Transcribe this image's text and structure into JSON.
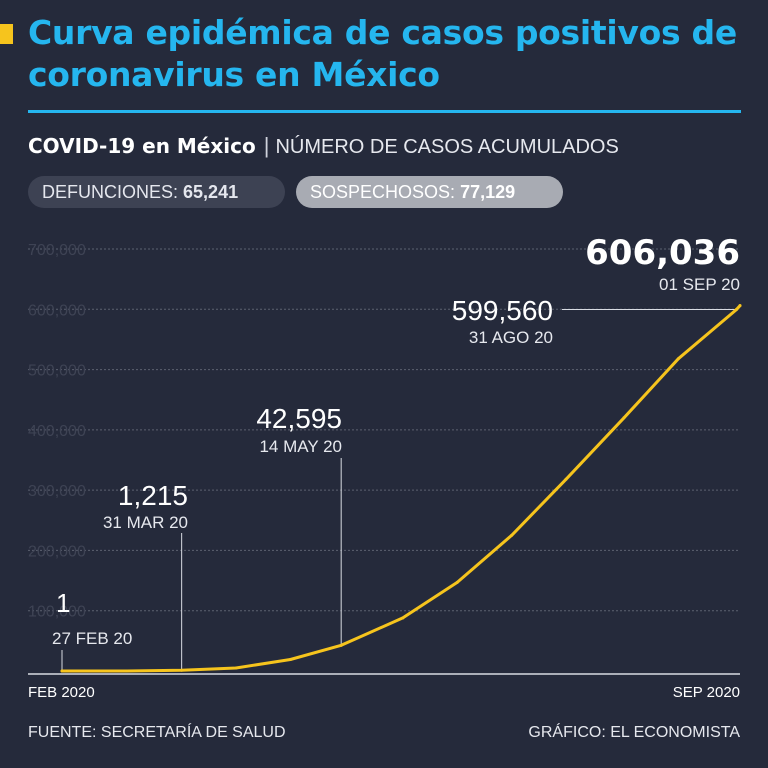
{
  "title": "Curva epidémica de casos positivos de coronavirus en México",
  "subtitle": {
    "strong": "COVID-19 en México",
    "separator": "|",
    "desc": "NÚMERO DE CASOS ACUMULADOS"
  },
  "stats": [
    {
      "label": "DEFUNCIONES:",
      "value": "65,241"
    },
    {
      "label": "SOSPECHOSOS:",
      "value": "77,129"
    }
  ],
  "footer": {
    "source": "FUENTE: SECRETARÍA DE SALUD",
    "credit": "GRÁFICO: EL ECONOMISTA"
  },
  "colors": {
    "background": "#252a3b",
    "title": "#25b6ef",
    "line": "#f6c41d",
    "grid": "#5c6170"
  },
  "chart_data": {
    "type": "line",
    "title": "",
    "xlabel": "",
    "ylabel": "",
    "ylim": [
      0,
      700000
    ],
    "yticks": [
      100000,
      200000,
      300000,
      400000,
      500000,
      600000,
      700000
    ],
    "ytick_labels": [
      "100,000",
      "200,000",
      "300,000",
      "400,000",
      "500,000",
      "600,000",
      "700,000"
    ],
    "x_start_label": "FEB 2020",
    "x_end_label": "SEP 2020",
    "grid": true,
    "series": [
      {
        "x": [
          "2020-02-27",
          "2020-03-15",
          "2020-03-31",
          "2020-04-15",
          "2020-04-30",
          "2020-05-14",
          "2020-05-31",
          "2020-06-15",
          "2020-06-30",
          "2020-07-15",
          "2020-07-31",
          "2020-08-15",
          "2020-08-31",
          "2020-09-01"
        ],
        "y": [
          1,
          30,
          1215,
          5000,
          19000,
          42595,
          88000,
          147000,
          225000,
          318000,
          420000,
          518000,
          599560,
          606036
        ]
      }
    ],
    "annotations": [
      {
        "date": "2020-02-27",
        "value": "1",
        "label": "27 FEB 20"
      },
      {
        "date": "2020-03-31",
        "value": "1,215",
        "label": "31 MAR 20"
      },
      {
        "date": "2020-05-14",
        "value": "42,595",
        "label": "14 MAY 20"
      },
      {
        "date": "2020-08-31",
        "value": "599,560",
        "label": "31 AGO 20"
      },
      {
        "date": "2020-09-01",
        "value": "606,036",
        "label": "01 SEP 20"
      }
    ]
  }
}
